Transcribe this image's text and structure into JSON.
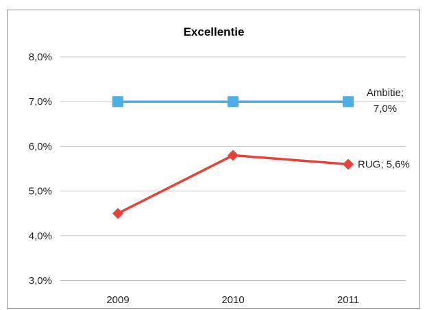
{
  "chart_data": {
    "type": "line",
    "title": "Excellentie",
    "categories": [
      "2009",
      "2010",
      "2011"
    ],
    "ylim": [
      3.0,
      8.0
    ],
    "yticks": [
      "3,0%",
      "4,0%",
      "5,0%",
      "6,0%",
      "7,0%",
      "8,0%"
    ],
    "grid": true,
    "series": [
      {
        "name": "Ambitie",
        "values": [
          7.0,
          7.0,
          7.0
        ],
        "color": "#4FAEE8",
        "marker": "square",
        "end_label_line1": "Ambitie;",
        "end_label_line2": "7,0%"
      },
      {
        "name": "RUG",
        "values": [
          4.5,
          5.8,
          5.6
        ],
        "color": "#E8413A",
        "marker": "diamond",
        "end_label_line1": "RUG; 5,6%",
        "end_label_line2": ""
      }
    ]
  }
}
